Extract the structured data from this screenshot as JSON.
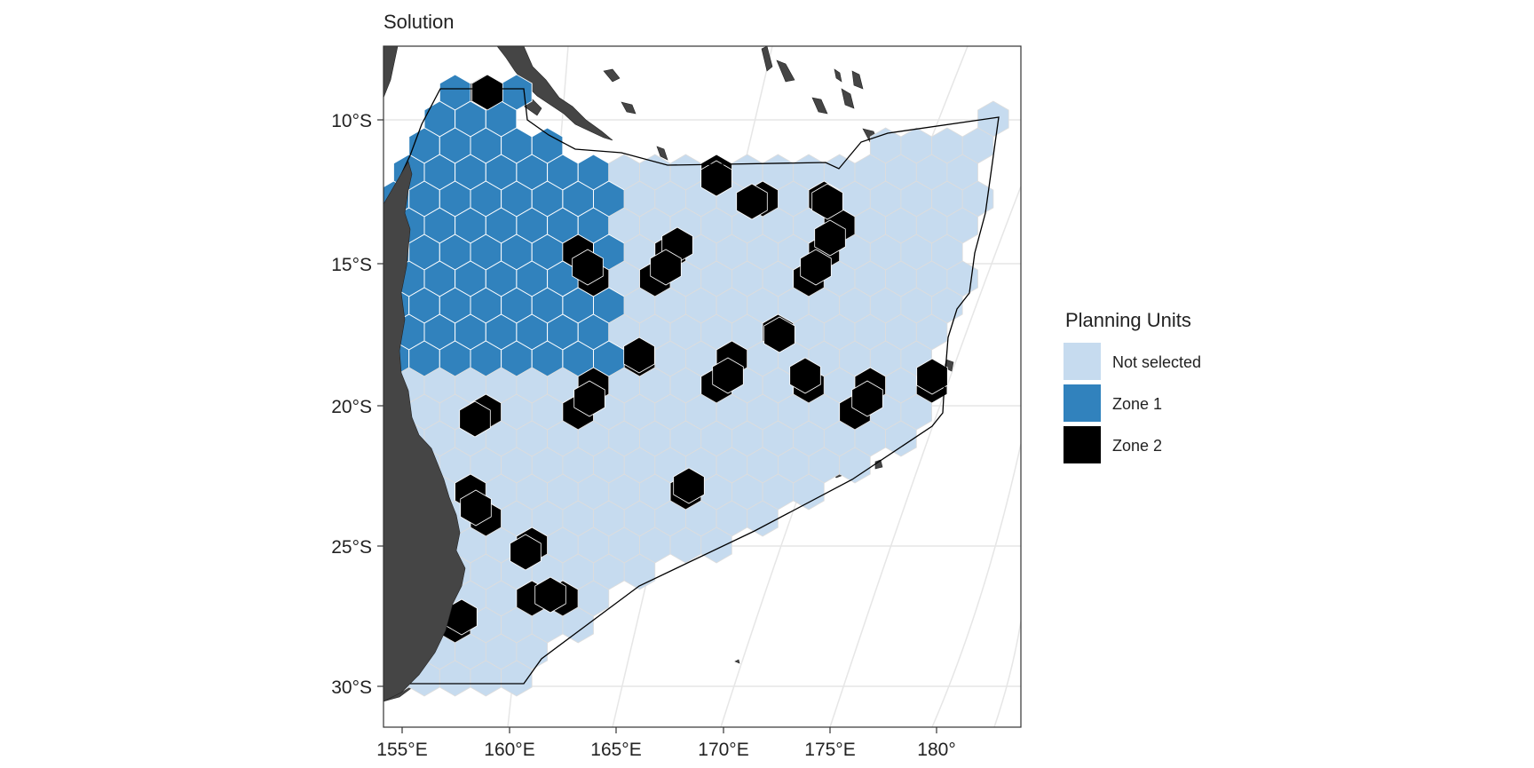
{
  "title": "Solution",
  "y_ticks": [
    "10°S",
    "15°S",
    "20°S",
    "25°S",
    "30°S"
  ],
  "x_ticks": [
    "155°E",
    "160°E",
    "165°E",
    "170°E",
    "175°E",
    "180°"
  ],
  "legend": {
    "title": "Planning Units",
    "items": [
      {
        "label": "Not selected",
        "color": "#c6dbef"
      },
      {
        "label": "Zone 1",
        "color": "#3182bd"
      },
      {
        "label": "Zone 2",
        "color": "#000000"
      }
    ]
  },
  "colors": {
    "land": "#454545",
    "graticule": "#e6e6e6",
    "hex_border": "#dddddd",
    "panel_border": "#333333"
  }
}
